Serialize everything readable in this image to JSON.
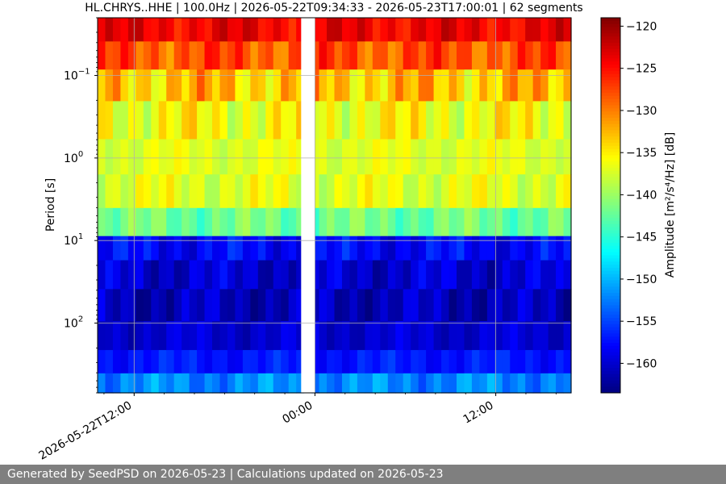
{
  "footer": {
    "text": "Generated by SeedPSD on 2026-05-23 | Calculations updated on 2026-05-23"
  },
  "chart_data": {
    "type": "heatmap",
    "title": "HL.CHRYS..HHE | 100.0Hz | 2026-05-22T09:34:33 - 2026-05-23T17:00:01 | 62 segments",
    "ylabel": "Period [s]",
    "colorbar_label": "Amplitude [m²/s⁴/Hz] [dB]",
    "colormap": "jet",
    "x_range": [
      "2026-05-22T09:34:33",
      "2026-05-23T17:00:01"
    ],
    "x_ticks": [
      {
        "time": "2026-05-22T12:00:00",
        "label": "2026-05-22T12:00"
      },
      {
        "time": "2026-05-23T00:00:00",
        "label": "00:00"
      },
      {
        "time": "2026-05-23T12:00:00",
        "label": "12:00"
      }
    ],
    "y_scale": "log",
    "y_inverted": true,
    "y_range": [
      0.02,
      700
    ],
    "y_ticks": [
      {
        "value": 0.1,
        "label": "10",
        "exp": "−1"
      },
      {
        "value": 1,
        "label": "10",
        "exp": "0"
      },
      {
        "value": 10,
        "label": "10",
        "exp": "1"
      },
      {
        "value": 100,
        "label": "10",
        "exp": "2"
      }
    ],
    "color_range": [
      -163.5,
      -119
    ],
    "colorbar_ticks": [
      -120,
      -125,
      -130,
      -135,
      -140,
      -145,
      -150,
      -155,
      -160
    ],
    "grid": true,
    "segments": 62,
    "gap": {
      "start": "2026-05-22T23:05:00",
      "end": "2026-05-22T23:59:00"
    },
    "period_bands": [
      0.025,
      0.06,
      0.12,
      0.35,
      1.0,
      2.5,
      6.5,
      12,
      25,
      60,
      150,
      300,
      550
    ],
    "band_profile_db": [
      -124,
      -128,
      -133,
      -136,
      -137,
      -137,
      -142,
      -158,
      -160,
      -161,
      -160,
      -157,
      -152
    ],
    "band_variation_db": [
      3,
      4,
      5,
      4,
      2,
      3,
      3,
      3,
      3,
      3,
      2,
      2,
      3
    ]
  }
}
